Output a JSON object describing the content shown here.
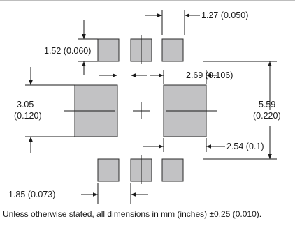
{
  "dimensions": {
    "pad_pitch": "1.27 (0.050)",
    "small_pad_height": "1.52 (0.060)",
    "large_pad_width": "2.69 (0.106)",
    "large_pad_height_mm": "3.05",
    "large_pad_height_in": "(0.120)",
    "overall_height_mm": "5.59",
    "overall_height_in": "(0.220)",
    "large_pad_gap": "2.54 (0.1)",
    "small_pad_width": "1.85 (0.073)"
  },
  "footer": {
    "note": "Unless otherwise stated, all dimensions in mm (inches) ±0.25 (0.010)."
  },
  "colors": {
    "pad_fill": "#c2c2c4",
    "line": "#1a1a1a"
  },
  "icons": {
    "arrowhead": "triangle-arrow"
  }
}
